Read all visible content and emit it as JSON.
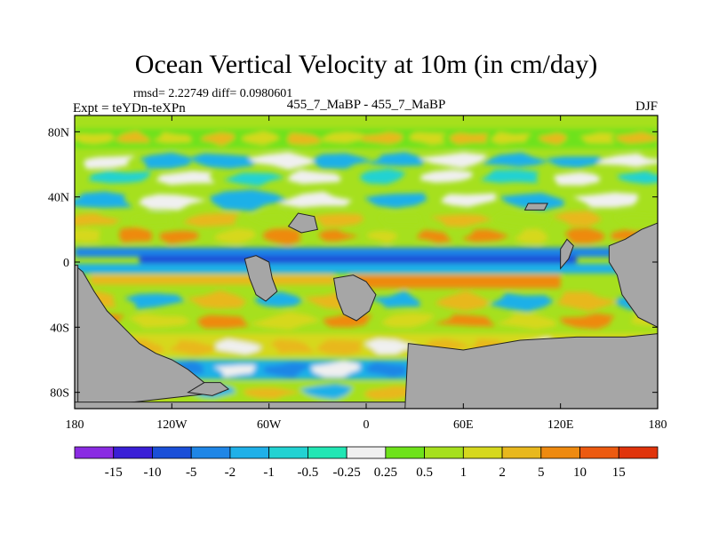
{
  "chart_data": {
    "type": "heatmap",
    "title": "Ocean Vertical Velocity at 10m (in cm/day)",
    "stats_label": "rmsd= 2.22749  diff= 0.0980601",
    "experiment_label": "Expt = teYDn-teXPn",
    "center_label": "455_7_MaBP - 455_7_MaBP",
    "season_label": "DJF",
    "xlabel": "",
    "ylabel": "",
    "xlim": [
      -180,
      180
    ],
    "ylim": [
      -90,
      90
    ],
    "x_ticks": [
      {
        "value": -180,
        "label": "180"
      },
      {
        "value": -120,
        "label": "120W"
      },
      {
        "value": -60,
        "label": "60W"
      },
      {
        "value": 0,
        "label": "0"
      },
      {
        "value": 60,
        "label": "60E"
      },
      {
        "value": 120,
        "label": "120E"
      },
      {
        "value": 180,
        "label": "180"
      }
    ],
    "y_ticks": [
      {
        "value": 80,
        "label": "80N"
      },
      {
        "value": 40,
        "label": "40N"
      },
      {
        "value": 0,
        "label": "0"
      },
      {
        "value": -40,
        "label": "40S"
      },
      {
        "value": -80,
        "label": "80S"
      }
    ],
    "colorbar": {
      "labels": [
        "-15",
        "-10",
        "-5",
        "-2",
        "-1",
        "-0.5",
        "-0.25",
        "0.25",
        "0.5",
        "1",
        "2",
        "5",
        "10",
        "15"
      ],
      "colors": [
        "#8a2be2",
        "#3a1fd6",
        "#1a4fd8",
        "#1f86e6",
        "#1fb0e8",
        "#22d2d2",
        "#22e6b4",
        "#f0f0f0",
        "#6ee21a",
        "#a6e01e",
        "#d6d81e",
        "#e8b81e",
        "#ee8a10",
        "#ec5a10",
        "#e0340c"
      ]
    },
    "colors": {
      "land": "#a6a6a6",
      "land_edge": "#222222"
    }
  }
}
